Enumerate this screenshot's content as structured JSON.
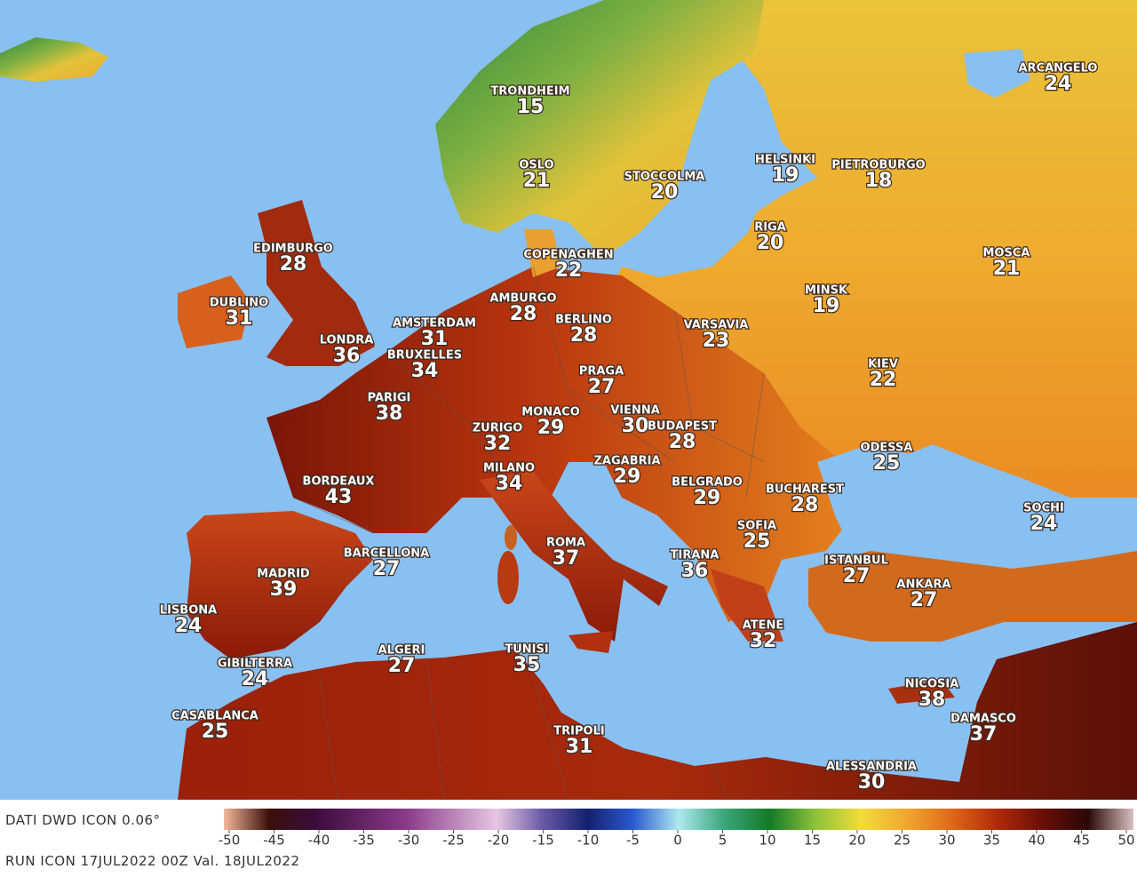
{
  "footer": {
    "source": "DATI DWD ICON 0.06°",
    "run": "RUN ICON 17JUL2022 00Z Val. 18JUL2022"
  },
  "colorbar": {
    "lim": [
      -50,
      50
    ],
    "ticks": [
      -50,
      -45,
      -40,
      -35,
      -30,
      -25,
      -20,
      -15,
      -10,
      -5,
      0,
      5,
      10,
      15,
      20,
      25,
      30,
      35,
      40,
      45,
      50
    ]
  },
  "cities": [
    {
      "name": "TRONDHEIM",
      "temp": 15
    },
    {
      "name": "ARCANGELO",
      "temp": 24
    },
    {
      "name": "OSLO",
      "temp": 21
    },
    {
      "name": "STOCCOLMA",
      "temp": 20
    },
    {
      "name": "HELSINKI",
      "temp": 19
    },
    {
      "name": "PIETROBURGO",
      "temp": 18
    },
    {
      "name": "RIGA",
      "temp": 20
    },
    {
      "name": "COPENAGHEN",
      "temp": 22
    },
    {
      "name": "EDIMBURGO",
      "temp": 28
    },
    {
      "name": "MOSCA",
      "temp": 21
    },
    {
      "name": "DUBLINO",
      "temp": 31
    },
    {
      "name": "AMBURGO",
      "temp": 28
    },
    {
      "name": "MINSK",
      "temp": 19
    },
    {
      "name": "BERLINO",
      "temp": 28
    },
    {
      "name": "AMSTERDAM",
      "temp": 31
    },
    {
      "name": "VARSAVIA",
      "temp": 23
    },
    {
      "name": "LONDRA",
      "temp": 36
    },
    {
      "name": "BRUXELLES",
      "temp": 34
    },
    {
      "name": "KIEV",
      "temp": 22
    },
    {
      "name": "PRAGA",
      "temp": 27
    },
    {
      "name": "PARIGI",
      "temp": 38
    },
    {
      "name": "MONACO",
      "temp": 29
    },
    {
      "name": "VIENNA",
      "temp": 30
    },
    {
      "name": "ZURIGO",
      "temp": 32
    },
    {
      "name": "BUDAPEST",
      "temp": 28
    },
    {
      "name": "ODESSA",
      "temp": 25
    },
    {
      "name": "ZAGABRIA",
      "temp": 29
    },
    {
      "name": "MILANO",
      "temp": 34
    },
    {
      "name": "BORDEAUX",
      "temp": 43
    },
    {
      "name": "BELGRADO",
      "temp": 29
    },
    {
      "name": "BUCHAREST",
      "temp": 28
    },
    {
      "name": "SOCHI",
      "temp": 24
    },
    {
      "name": "SOFIA",
      "temp": 25
    },
    {
      "name": "ROMA",
      "temp": 37
    },
    {
      "name": "BARCELLONA",
      "temp": 27
    },
    {
      "name": "TIRANA",
      "temp": 36
    },
    {
      "name": "ISTANBUL",
      "temp": 27
    },
    {
      "name": "MADRID",
      "temp": 39
    },
    {
      "name": "ANKARA",
      "temp": 27
    },
    {
      "name": "LISBONA",
      "temp": 24
    },
    {
      "name": "ATENE",
      "temp": 32
    },
    {
      "name": "ALGERI",
      "temp": 27
    },
    {
      "name": "TUNISI",
      "temp": 35
    },
    {
      "name": "GIBILTERRA",
      "temp": 24
    },
    {
      "name": "NICOSIA",
      "temp": 38
    },
    {
      "name": "CASABLANCA",
      "temp": 25
    },
    {
      "name": "DAMASCO",
      "temp": 37
    },
    {
      "name": "TRIPOLI",
      "temp": 31
    },
    {
      "name": "ALESSANDRIA",
      "temp": 30
    }
  ]
}
